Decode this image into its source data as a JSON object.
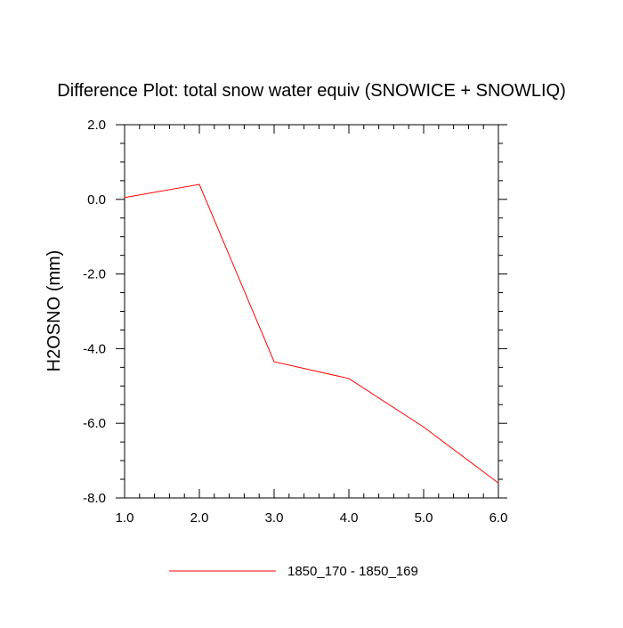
{
  "chart_data": {
    "type": "line",
    "title": "Difference Plot: total snow water equiv (SNOWICE + SNOWLIQ)",
    "xlabel": "",
    "ylabel": "H2OSNO  (mm)",
    "xlim": [
      1.0,
      6.0
    ],
    "ylim": [
      -8.0,
      2.0
    ],
    "x_ticks": [
      "1.0",
      "2.0",
      "3.0",
      "4.0",
      "5.0",
      "6.0"
    ],
    "y_ticks": [
      "2.0",
      "0.0",
      "-2.0",
      "-4.0",
      "-6.0",
      "-8.0"
    ],
    "grid": false,
    "legend_position": "bottom",
    "series": [
      {
        "name": "1850_170 - 1850_169",
        "color": "#ff0000",
        "x": [
          1.0,
          2.0,
          3.0,
          4.0,
          5.0,
          6.0
        ],
        "values": [
          0.05,
          0.4,
          -4.35,
          -4.8,
          -6.1,
          -7.6
        ]
      }
    ]
  }
}
